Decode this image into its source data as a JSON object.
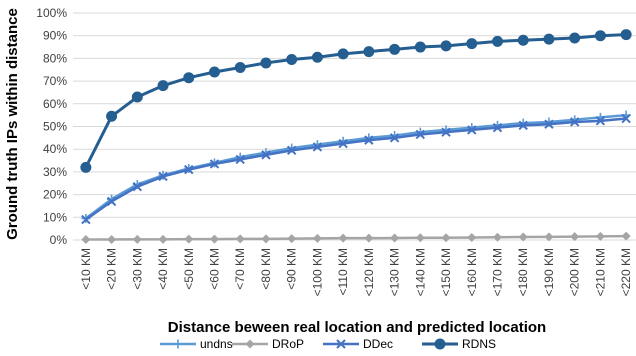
{
  "chart_data": {
    "type": "line",
    "title": "",
    "xlabel": "Distance beween real location and predicted location",
    "ylabel": "Ground truth IPs within distance",
    "ylim": [
      0,
      100
    ],
    "yticks": [
      "0%",
      "10%",
      "20%",
      "30%",
      "40%",
      "50%",
      "60%",
      "70%",
      "80%",
      "90%",
      "100%"
    ],
    "grid": true,
    "legend_position": "bottom",
    "categories": [
      "<10 KM",
      "<20 KM",
      "<30 KM",
      "<40 KM",
      "<50 KM",
      "<60 KM",
      "<70 KM",
      "<80 KM",
      "<90 KM",
      "<100 KM",
      "<110 KM",
      "<120 KM",
      "<130 KM",
      "<140 KM",
      "<150 KM",
      "<160 KM",
      "<170 KM",
      "<180 KM",
      "<190 KM",
      "<200 KM",
      "<210 KM",
      "<220 KM"
    ],
    "series": [
      {
        "name": "undns",
        "color": "#5b9bd5",
        "marker": "plus",
        "values": [
          9.5,
          18,
          24.5,
          28.5,
          31.5,
          34,
          36.5,
          38.5,
          40.5,
          42,
          43.5,
          45,
          46,
          47.5,
          48.5,
          49.5,
          50.5,
          51.5,
          52,
          53,
          54,
          55
        ]
      },
      {
        "name": "DRoP",
        "color": "#a5a5a5",
        "marker": "diamond",
        "values": [
          0.2,
          0.2,
          0.3,
          0.3,
          0.4,
          0.4,
          0.5,
          0.5,
          0.6,
          0.7,
          0.8,
          0.8,
          0.9,
          1.0,
          1.0,
          1.1,
          1.2,
          1.3,
          1.4,
          1.5,
          1.6,
          1.7
        ]
      },
      {
        "name": "DDec",
        "color": "#4472c4",
        "marker": "x",
        "values": [
          9,
          17,
          23.5,
          28,
          31,
          33.5,
          35.5,
          37.5,
          39.5,
          41,
          42.5,
          44,
          45,
          46.5,
          47.5,
          48.5,
          49.5,
          50.5,
          51,
          52,
          52.5,
          53.5
        ]
      },
      {
        "name": "RDNS",
        "color": "#255e91",
        "marker": "circle",
        "values": [
          32,
          54.5,
          63,
          68,
          71.5,
          74,
          76,
          78,
          79.5,
          80.5,
          82,
          83,
          84,
          85,
          85.5,
          86.5,
          87.5,
          88,
          88.5,
          89,
          90,
          90.5
        ]
      }
    ]
  }
}
